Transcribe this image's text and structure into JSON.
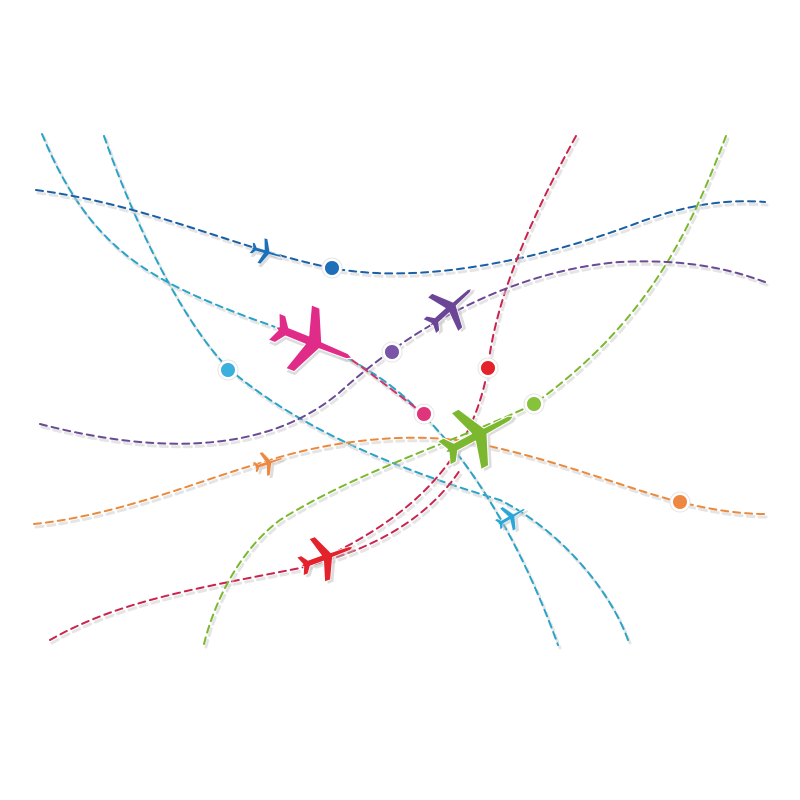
{
  "illustration": {
    "background": "#ffffff",
    "routes": [
      {
        "id": "route-teal-1",
        "color": "#2aa3c8"
      },
      {
        "id": "route-teal-2",
        "color": "#2aa3c8"
      },
      {
        "id": "route-navy",
        "color": "#1a5fa6"
      },
      {
        "id": "route-crimson-1",
        "color": "#c8244e"
      },
      {
        "id": "route-crimson-2",
        "color": "#c8244e"
      },
      {
        "id": "route-lime",
        "color": "#7ab82e"
      },
      {
        "id": "route-purple",
        "color": "#6a4a93"
      },
      {
        "id": "route-orange",
        "color": "#ea8a3c"
      },
      {
        "id": "route-pink",
        "color": "#d0356e"
      }
    ],
    "planes": [
      {
        "id": "plane-blue",
        "color": "#1d6fb8",
        "icon": "airplane-icon"
      },
      {
        "id": "plane-magenta",
        "color": "#e02c88",
        "icon": "airplane-icon"
      },
      {
        "id": "plane-purple",
        "color": "#6b4596",
        "icon": "airplane-icon"
      },
      {
        "id": "plane-green",
        "color": "#7cb82f",
        "icon": "airplane-icon"
      },
      {
        "id": "plane-orange",
        "color": "#ee8840",
        "icon": "airplane-icon"
      },
      {
        "id": "plane-lightblue",
        "color": "#2ba6d8",
        "icon": "airplane-icon"
      },
      {
        "id": "plane-red",
        "color": "#e3222b",
        "icon": "airplane-icon"
      }
    ],
    "pins": [
      {
        "id": "pin-blue",
        "color": "#1d6fb8",
        "icon": "location-pin-icon"
      },
      {
        "id": "pin-lightblue",
        "color": "#3bb0df",
        "icon": "location-pin-icon"
      },
      {
        "id": "pin-purple",
        "color": "#7a54a6",
        "icon": "location-pin-icon"
      },
      {
        "id": "pin-red",
        "color": "#e3222b",
        "icon": "location-pin-icon"
      },
      {
        "id": "pin-pink",
        "color": "#e0357a",
        "icon": "location-pin-icon"
      },
      {
        "id": "pin-green",
        "color": "#86c23a",
        "icon": "location-pin-icon"
      },
      {
        "id": "pin-orange",
        "color": "#ee8840",
        "icon": "location-pin-icon"
      }
    ]
  }
}
